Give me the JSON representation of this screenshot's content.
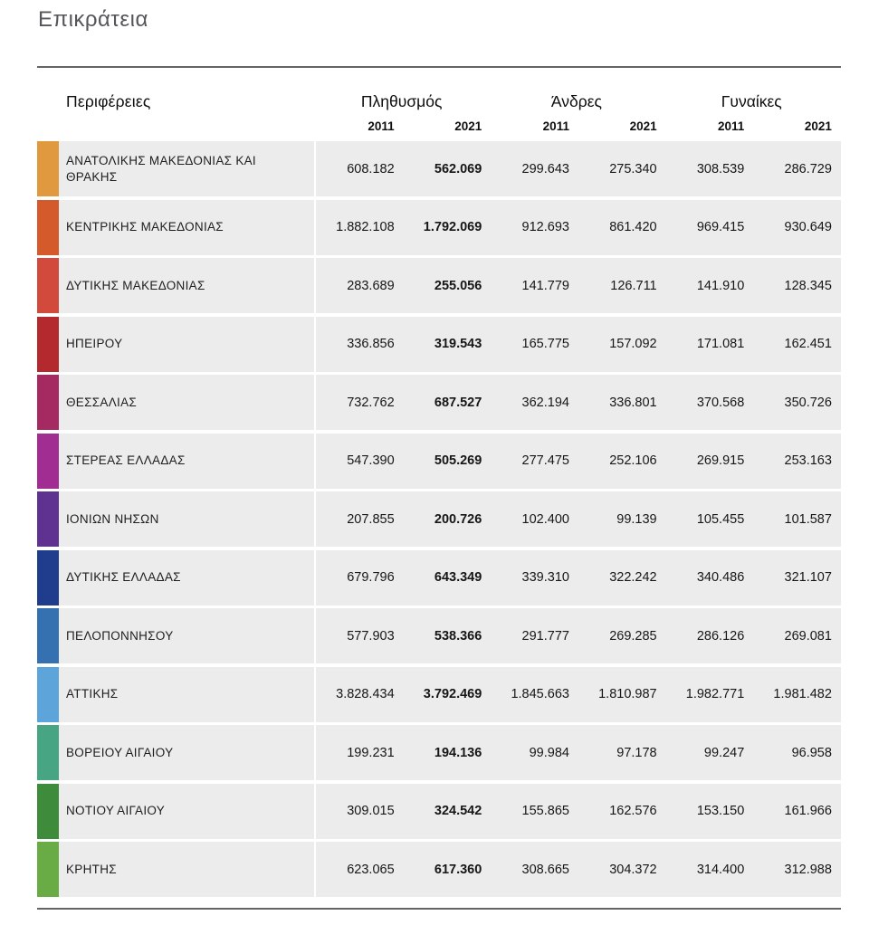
{
  "page": {
    "title": "Επικράτεια"
  },
  "table": {
    "region_header": "Περιφέρειες",
    "groups": [
      {
        "label": "Πληθυσμός",
        "years": [
          "2011",
          "2021"
        ]
      },
      {
        "label": "Άνδρες",
        "years": [
          "2011",
          "2021"
        ]
      },
      {
        "label": "Γυναίκες",
        "years": [
          "2011",
          "2021"
        ]
      }
    ],
    "rows": [
      {
        "region": "ΑΝΑΤΟΛΙΚΗΣ ΜΑΚΕΔΟΝΙΑΣ ΚΑΙ ΘΡΑΚΗΣ",
        "color": "#e0993e",
        "values": [
          "608.182",
          "562.069",
          "299.643",
          "275.340",
          "308.539",
          "286.729"
        ]
      },
      {
        "region": "ΚΕΝΤΡΙΚΗΣ ΜΑΚΕΔΟΝΙΑΣ",
        "color": "#d45a2c",
        "values": [
          "1.882.108",
          "1.792.069",
          "912.693",
          "861.420",
          "969.415",
          "930.649"
        ]
      },
      {
        "region": "ΔΥΤΙΚΗΣ ΜΑΚΕΔΟΝΙΑΣ",
        "color": "#d24a3b",
        "values": [
          "283.689",
          "255.056",
          "141.779",
          "126.711",
          "141.910",
          "128.345"
        ]
      },
      {
        "region": "ΗΠΕΙΡΟΥ",
        "color": "#b3292e",
        "values": [
          "336.856",
          "319.543",
          "165.775",
          "157.092",
          "171.081",
          "162.451"
        ]
      },
      {
        "region": "ΘΕΣΣΑΛΙΑΣ",
        "color": "#a52a62",
        "values": [
          "732.762",
          "687.527",
          "362.194",
          "336.801",
          "370.568",
          "350.726"
        ]
      },
      {
        "region": "ΣΤΕΡΕΑΣ ΕΛΛΑΔΑΣ",
        "color": "#a22d92",
        "values": [
          "547.390",
          "505.269",
          "277.475",
          "252.106",
          "269.915",
          "253.163"
        ]
      },
      {
        "region": "ΙΟΝΙΩΝ ΝΗΣΩΝ",
        "color": "#5f3191",
        "values": [
          "207.855",
          "200.726",
          "102.400",
          "99.139",
          "105.455",
          "101.587"
        ]
      },
      {
        "region": "ΔΥΤΙΚΗΣ ΕΛΛΑΔΑΣ",
        "color": "#203d8d",
        "values": [
          "679.796",
          "643.349",
          "339.310",
          "322.242",
          "340.486",
          "321.107"
        ]
      },
      {
        "region": "ΠΕΛΟΠΟΝΝΗΣΟΥ",
        "color": "#3571b1",
        "values": [
          "577.903",
          "538.366",
          "291.777",
          "269.285",
          "286.126",
          "269.081"
        ]
      },
      {
        "region": "ΑΤΤΙΚΗΣ",
        "color": "#5ca4da",
        "values": [
          "3.828.434",
          "3.792.469",
          "1.845.663",
          "1.810.987",
          "1.982.771",
          "1.981.482"
        ]
      },
      {
        "region": "ΒΟΡΕΙΟΥ ΑΙΓΑΙΟΥ",
        "color": "#47a583",
        "values": [
          "199.231",
          "194.136",
          "99.984",
          "97.178",
          "99.247",
          "96.958"
        ]
      },
      {
        "region": "ΝΟΤΙΟΥ ΑΙΓΑΙΟΥ",
        "color": "#3f8b3c",
        "values": [
          "309.015",
          "324.542",
          "155.865",
          "162.576",
          "153.150",
          "161.966"
        ]
      },
      {
        "region": "ΚΡΗΤΗΣ",
        "color": "#69ac46",
        "values": [
          "623.065",
          "617.360",
          "308.665",
          "304.372",
          "314.400",
          "312.988"
        ]
      }
    ]
  },
  "chart_data": {
    "type": "table",
    "title": "Επικράτεια",
    "column_groups": [
      "Πληθυσμός",
      "Άνδρες",
      "Γυναίκες"
    ],
    "columns": [
      "Περιφέρειες",
      "Πληθυσμός 2011",
      "Πληθυσμός 2021",
      "Άνδρες 2011",
      "Άνδρες 2021",
      "Γυναίκες 2011",
      "Γυναίκες 2021"
    ],
    "rows": [
      [
        "ΑΝΑΤΟΛΙΚΗΣ ΜΑΚΕΔΟΝΙΑΣ ΚΑΙ ΘΡΑΚΗΣ",
        608182,
        562069,
        299643,
        275340,
        308539,
        286729
      ],
      [
        "ΚΕΝΤΡΙΚΗΣ ΜΑΚΕΔΟΝΙΑΣ",
        1882108,
        1792069,
        912693,
        861420,
        969415,
        930649
      ],
      [
        "ΔΥΤΙΚΗΣ ΜΑΚΕΔΟΝΙΑΣ",
        283689,
        255056,
        141779,
        126711,
        141910,
        128345
      ],
      [
        "ΗΠΕΙΡΟΥ",
        336856,
        319543,
        165775,
        157092,
        171081,
        162451
      ],
      [
        "ΘΕΣΣΑΛΙΑΣ",
        732762,
        687527,
        362194,
        336801,
        370568,
        350726
      ],
      [
        "ΣΤΕΡΕΑΣ ΕΛΛΑΔΑΣ",
        547390,
        505269,
        277475,
        252106,
        269915,
        253163
      ],
      [
        "ΙΟΝΙΩΝ ΝΗΣΩΝ",
        207855,
        200726,
        102400,
        99139,
        105455,
        101587
      ],
      [
        "ΔΥΤΙΚΗΣ ΕΛΛΑΔΑΣ",
        679796,
        643349,
        339310,
        322242,
        340486,
        321107
      ],
      [
        "ΠΕΛΟΠΟΝΝΗΣΟΥ",
        577903,
        538366,
        291777,
        269285,
        286126,
        269081
      ],
      [
        "ΑΤΤΙΚΗΣ",
        3828434,
        3792469,
        1845663,
        1810987,
        1982771,
        1981482
      ],
      [
        "ΒΟΡΕΙΟΥ ΑΙΓΑΙΟΥ",
        199231,
        194136,
        99984,
        97178,
        99247,
        96958
      ],
      [
        "ΝΟΤΙΟΥ ΑΙΓΑΙΟΥ",
        309015,
        324542,
        155865,
        162576,
        153150,
        161966
      ],
      [
        "ΚΡΗΤΗΣ",
        623065,
        617360,
        308665,
        304372,
        314400,
        312988
      ]
    ],
    "row_colors": [
      "#e0993e",
      "#d45a2c",
      "#d24a3b",
      "#b3292e",
      "#a52a62",
      "#a22d92",
      "#5f3191",
      "#203d8d",
      "#3571b1",
      "#5ca4da",
      "#47a583",
      "#3f8b3c",
      "#69ac46"
    ],
    "notes": "2021 population column rendered bold"
  }
}
